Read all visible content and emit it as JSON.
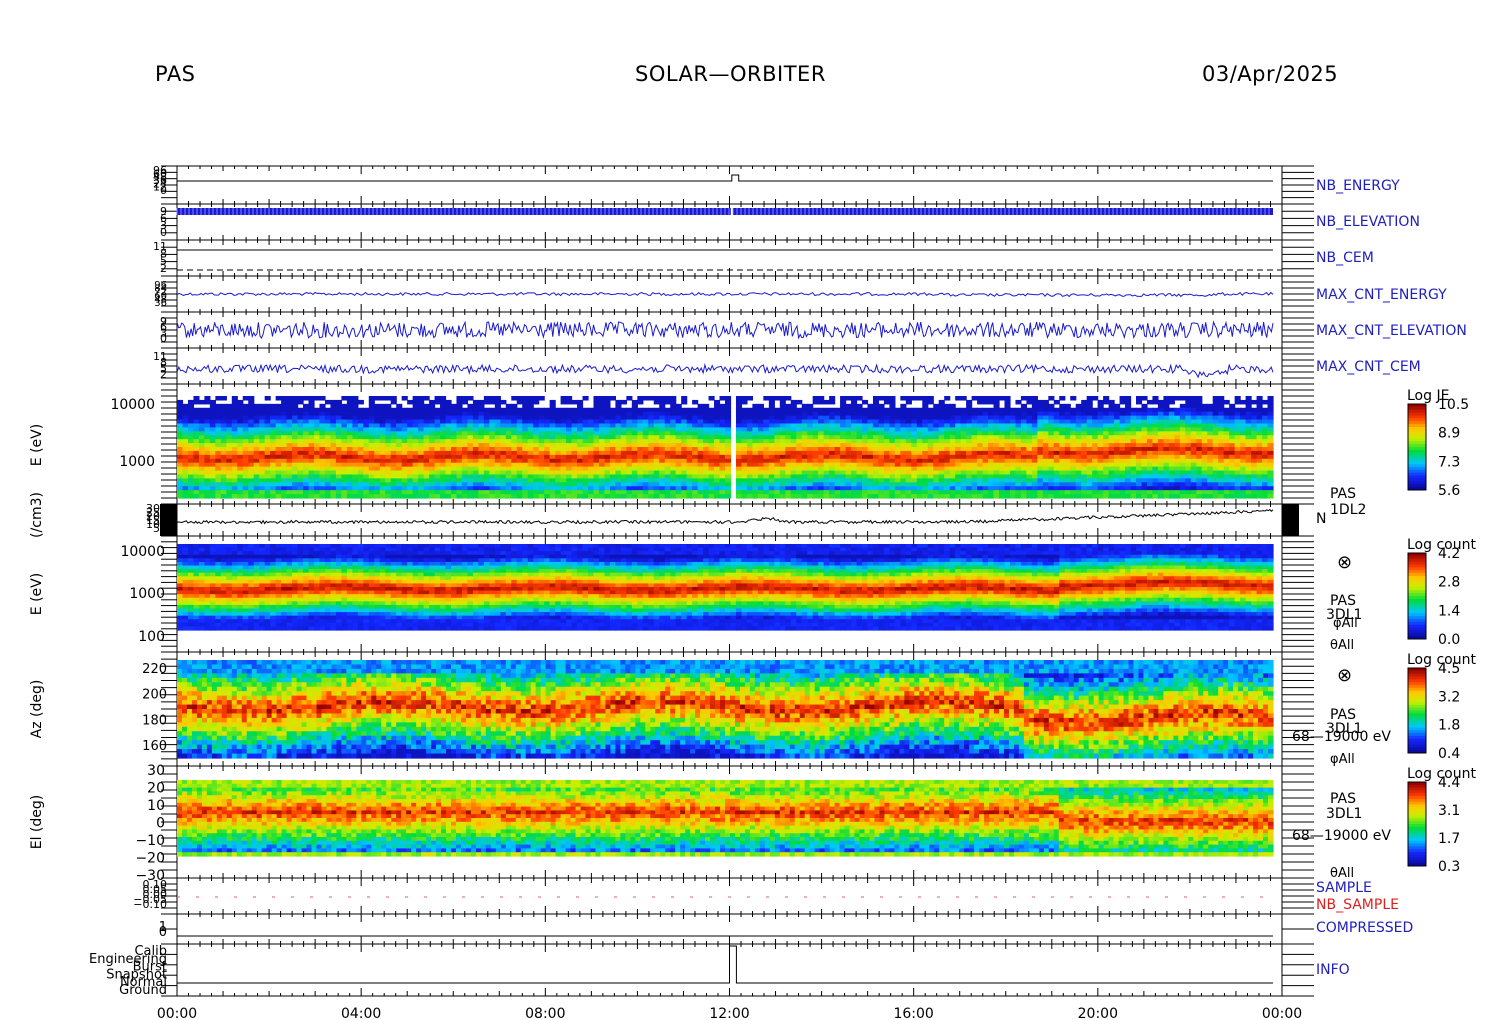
{
  "header": {
    "left": "PAS",
    "center": "SOLAR—ORBITER",
    "right": "03/Apr/2025"
  },
  "chart_data": {
    "type": "multi-panel-timeseries",
    "x_ticks": [
      "00:00",
      "04:00",
      "08:00",
      "12:00",
      "16:00",
      "20:00",
      "00:00"
    ],
    "x_range_hours": [
      0,
      24
    ],
    "panels": [
      {
        "id": "nb_energy",
        "type": "line",
        "label": "NB_ENERGY",
        "label_color": "#2020c0",
        "yticks": [
          "96",
          "60",
          "48",
          "36",
          "24",
          "12",
          "0"
        ]
      },
      {
        "id": "nb_elevation",
        "type": "line",
        "label": "NB_ELEVATION",
        "label_color": "#2020c0",
        "yticks": [
          "9",
          "6",
          "3",
          "0"
        ]
      },
      {
        "id": "nb_cem",
        "type": "line",
        "label": "NB_CEM",
        "label_color": "#2020c0",
        "yticks": [
          "11",
          "8",
          "5",
          "2"
        ]
      },
      {
        "id": "max_cnt_energy",
        "type": "line",
        "label": "MAX_CNT_ENERGY",
        "label_color": "#2020c0",
        "yticks": [
          "96",
          "84",
          "72",
          "60",
          "48",
          "36"
        ]
      },
      {
        "id": "max_cnt_elevation",
        "type": "line",
        "label": "MAX_CNT_ELEVATION",
        "label_color": "#2020c0",
        "yticks": [
          "9",
          "6",
          "3",
          "0"
        ]
      },
      {
        "id": "max_cnt_cem",
        "type": "line",
        "label": "MAX_CNT_CEM",
        "label_color": "#2020c0",
        "yticks": [
          "11",
          "8",
          "5",
          "2"
        ]
      },
      {
        "id": "energy_je",
        "type": "heatmap",
        "ylabel": "E (eV)",
        "yticks": [
          "10000",
          "1000"
        ],
        "log_y": true,
        "colorbar": {
          "title": "Log JE",
          "ticks": [
            "10.5",
            "8.9",
            "7.3",
            "5.6"
          ]
        }
      },
      {
        "id": "density",
        "type": "line",
        "ylabel": "(/cm3)",
        "yticks": [
          "300",
          "250",
          "200",
          "150",
          "100",
          "50"
        ],
        "labels": [
          "PAS",
          "1DL2",
          "N"
        ]
      },
      {
        "id": "energy_count",
        "type": "heatmap",
        "ylabel": "E (eV)",
        "yticks": [
          "10000",
          "1000",
          "100"
        ],
        "log_y": true,
        "colorbar": {
          "title": "Log count",
          "ticks": [
            "4.2",
            "2.8",
            "1.4",
            "0.0"
          ]
        },
        "labels": [
          "⊗",
          "PAS",
          "3DL1",
          "φAll",
          "θAll"
        ]
      },
      {
        "id": "azimuth",
        "type": "heatmap",
        "ylabel": "Az (deg)",
        "yticks": [
          "220",
          "200",
          "180",
          "160"
        ],
        "colorbar": {
          "title": "Log count",
          "ticks": [
            "4.5",
            "3.2",
            "1.8",
            "0.4"
          ]
        },
        "labels": [
          "⊗",
          "PAS",
          "3DL1",
          "68—19000 eV",
          "φAll"
        ]
      },
      {
        "id": "elevation",
        "type": "heatmap",
        "ylabel": "El (deg)",
        "yticks": [
          "30",
          "20",
          "10",
          "0",
          "−10",
          "−20",
          "−30"
        ],
        "colorbar": {
          "title": "Log count",
          "ticks": [
            "4.4",
            "3.1",
            "1.7",
            "0.3"
          ]
        },
        "labels": [
          "PAS",
          "3DL1",
          "68—19000 eV",
          "θAll"
        ]
      },
      {
        "id": "sample",
        "type": "line",
        "labels": [
          "SAMPLE",
          "NB_SAMPLE"
        ],
        "label_colors": [
          "#2020c0",
          "#e02020"
        ],
        "yticks": [
          "0.10",
          "0.05",
          "0.00",
          "−0.05",
          "−0.10"
        ]
      },
      {
        "id": "compressed",
        "type": "line",
        "label": "COMPRESSED",
        "label_color": "#2020c0",
        "yticks": [
          "1",
          "0"
        ]
      },
      {
        "id": "info",
        "type": "line",
        "label": "INFO",
        "label_color": "#2020c0",
        "yticks": [
          "Calib",
          "Engineering",
          "Burst",
          "Snapshot",
          "Normal",
          "Ground"
        ]
      }
    ]
  }
}
